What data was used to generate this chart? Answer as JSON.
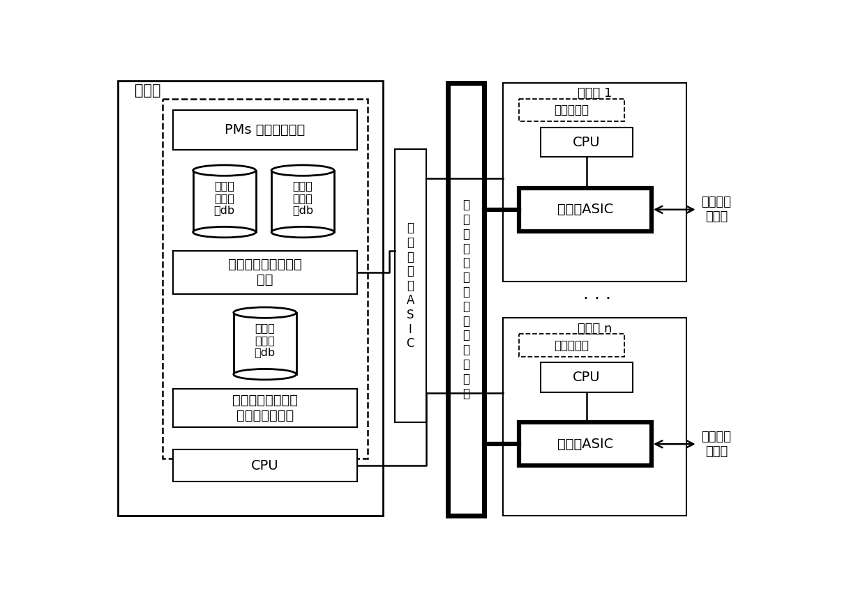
{
  "bg_color": "#ffffff",
  "main_board_label": "主控板",
  "control_network_label": "控\n制\n面\n网\n络\nA\nS\nI\nC",
  "switch_network_label": "业\n务\n数\n据\n面\n交\n换\n网\n络\n，\n快\n速\n转\n发",
  "pms_label": "PMs 协议计算处理",
  "db1_label": "业务数\n据面路\n由db",
  "db2_label": "业务数\n据面邻\n居db",
  "slow_fwd_label": "业务数据面慢速转发\n处理",
  "db3_label": "业务数\n据面端\n口db",
  "virtual_port_label": "虚拟业务端口驱动\n嵌入式操作系统",
  "main_cpu_label": "CPU",
  "board1_label": "业务板 1",
  "redirect1_label": "重定向驱动",
  "cpu1_label": "CPU",
  "asic1_label": "数据面ASIC",
  "port1_label": "数据面业\n务端口",
  "dots_label": "· · ·",
  "boardn_label": "业务板 n",
  "redirectn_label": "重定向驱动",
  "cpun_label": "CPU",
  "asicn_label": "数据面ASIC",
  "portn_label": "数据面业\n务端口"
}
